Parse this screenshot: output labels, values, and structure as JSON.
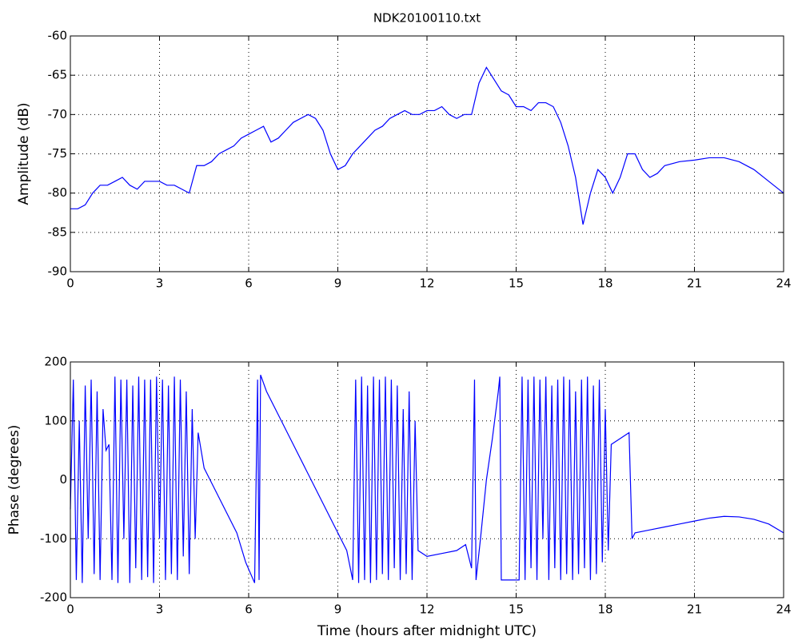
{
  "chart_data": [
    {
      "type": "line",
      "title": "NDK20100110.txt",
      "ylabel": "Amplitude (dB)",
      "xlim": [
        0,
        24
      ],
      "xticks": [
        0,
        3,
        6,
        9,
        12,
        15,
        18,
        21,
        24
      ],
      "ylim": [
        -90,
        -60
      ],
      "yticks": [
        -90,
        -85,
        -80,
        -75,
        -70,
        -65,
        -60
      ],
      "grid": true,
      "series": [
        {
          "color": "#0000ff",
          "x": [
            0,
            0.25,
            0.5,
            0.75,
            1,
            1.25,
            1.5,
            1.75,
            2,
            2.25,
            2.5,
            2.75,
            3,
            3.25,
            3.5,
            3.75,
            4,
            4.25,
            4.5,
            4.75,
            5,
            5.25,
            5.5,
            5.75,
            6,
            6.25,
            6.5,
            6.75,
            7,
            7.25,
            7.5,
            7.75,
            8,
            8.25,
            8.5,
            8.75,
            9,
            9.25,
            9.5,
            9.75,
            10,
            10.25,
            10.5,
            10.75,
            11,
            11.25,
            11.5,
            11.75,
            12,
            12.25,
            12.5,
            12.75,
            13,
            13.25,
            13.5,
            13.75,
            14,
            14.25,
            14.5,
            14.75,
            15,
            15.25,
            15.5,
            15.75,
            16,
            16.25,
            16.5,
            16.75,
            17,
            17.25,
            17.5,
            17.75,
            18,
            18.25,
            18.5,
            18.75,
            19,
            19.25,
            19.5,
            19.75,
            20,
            20.5,
            21,
            21.5,
            22,
            22.5,
            23,
            23.5,
            24
          ],
          "values": [
            -82,
            -82,
            -81.5,
            -80,
            -79,
            -79,
            -78.5,
            -78,
            -79,
            -79.5,
            -78.5,
            -78.5,
            -78.5,
            -79,
            -79,
            -79.5,
            -80,
            -76.5,
            -76.5,
            -76,
            -75,
            -74.5,
            -74,
            -73,
            -72.5,
            -72,
            -71.5,
            -73.5,
            -73,
            -72,
            -71,
            -70.5,
            -70,
            -70.5,
            -72,
            -75,
            -77,
            -76.5,
            -75,
            -74,
            -73,
            -72,
            -71.5,
            -70.5,
            -70,
            -69.5,
            -70,
            -70,
            -69.5,
            -69.5,
            -69,
            -70,
            -70.5,
            -70,
            -70,
            -66,
            -64,
            -65.5,
            -67,
            -67.5,
            -69,
            -69,
            -69.5,
            -68.5,
            -68.5,
            -69,
            -71,
            -74,
            -78,
            -84,
            -80,
            -77,
            -78,
            -80,
            -78,
            -75,
            -75,
            -77,
            -78,
            -77.5,
            -76.5,
            -76,
            -75.8,
            -75.5,
            -75.5,
            -76,
            -77,
            -78.5,
            -80
          ]
        }
      ]
    },
    {
      "type": "line",
      "ylabel": "Phase (degrees)",
      "xlabel": "Time (hours after midnight UTC)",
      "xlim": [
        0,
        24
      ],
      "xticks": [
        0,
        3,
        6,
        9,
        12,
        15,
        18,
        21,
        24
      ],
      "ylim": [
        -200,
        200
      ],
      "yticks": [
        -200,
        -100,
        0,
        100,
        200
      ],
      "grid": true,
      "series": [
        {
          "color": "#0000ff",
          "x": [
            0,
            0.1,
            0.2,
            0.3,
            0.4,
            0.5,
            0.6,
            0.7,
            0.8,
            0.9,
            1.0,
            1.1,
            1.2,
            1.3,
            1.4,
            1.5,
            1.6,
            1.7,
            1.8,
            1.9,
            2.0,
            2.1,
            2.2,
            2.3,
            2.4,
            2.5,
            2.6,
            2.7,
            2.8,
            2.9,
            3.0,
            3.1,
            3.2,
            3.3,
            3.4,
            3.5,
            3.6,
            3.7,
            3.8,
            3.9,
            4.0,
            4.1,
            4.2,
            4.3,
            4.5,
            4.7,
            5.0,
            5.3,
            5.6,
            5.9,
            6.2,
            6.3,
            6.35,
            6.4,
            6.6,
            7.0,
            7.5,
            8.0,
            8.5,
            9.0,
            9.3,
            9.5,
            9.6,
            9.7,
            9.8,
            9.9,
            10.0,
            10.1,
            10.2,
            10.3,
            10.4,
            10.5,
            10.6,
            10.7,
            10.8,
            10.9,
            11.0,
            11.1,
            11.2,
            11.3,
            11.4,
            11.5,
            11.6,
            11.7,
            12.0,
            12.5,
            13.0,
            13.3,
            13.5,
            13.6,
            13.65,
            13.8,
            14.0,
            14.2,
            14.4,
            14.45,
            14.5,
            15.1,
            15.2,
            15.3,
            15.4,
            15.5,
            15.6,
            15.7,
            15.8,
            15.9,
            16.0,
            16.1,
            16.2,
            16.3,
            16.4,
            16.5,
            16.6,
            16.7,
            16.8,
            16.9,
            17.0,
            17.1,
            17.2,
            17.3,
            17.4,
            17.5,
            17.6,
            17.7,
            17.8,
            17.9,
            18.0,
            18.1,
            18.2,
            18.5,
            18.8,
            18.9,
            19.0,
            19.5,
            20,
            20.5,
            21,
            21.5,
            22,
            22.5,
            23,
            23.5,
            24
          ],
          "values": [
            -50,
            170,
            -170,
            100,
            -175,
            160,
            -100,
            170,
            -160,
            150,
            -170,
            120,
            50,
            60,
            -170,
            175,
            -175,
            170,
            -100,
            170,
            -175,
            160,
            -150,
            175,
            -170,
            170,
            -165,
            170,
            -175,
            175,
            -100,
            170,
            -170,
            160,
            -160,
            175,
            -170,
            170,
            -130,
            150,
            -160,
            120,
            -100,
            80,
            20,
            0,
            -30,
            -60,
            -90,
            -140,
            -175,
            170,
            -170,
            178,
            150,
            110,
            60,
            10,
            -40,
            -90,
            -120,
            -170,
            170,
            -175,
            175,
            -170,
            160,
            -175,
            175,
            -170,
            170,
            -160,
            175,
            -170,
            170,
            -150,
            160,
            -170,
            120,
            -160,
            150,
            -170,
            100,
            -120,
            -130,
            -125,
            -120,
            -110,
            -150,
            170,
            -170,
            -100,
            0,
            70,
            150,
            175,
            -170,
            -170,
            175,
            -170,
            170,
            -150,
            175,
            -170,
            170,
            -100,
            175,
            -170,
            160,
            -150,
            170,
            -170,
            175,
            -160,
            170,
            -170,
            150,
            -160,
            170,
            -150,
            175,
            -170,
            160,
            -160,
            170,
            -140,
            120,
            -120,
            60,
            70,
            80,
            -100,
            -90,
            -85,
            -80,
            -75,
            -70,
            -65,
            -62,
            -63,
            -67,
            -75,
            -90
          ]
        }
      ]
    }
  ]
}
